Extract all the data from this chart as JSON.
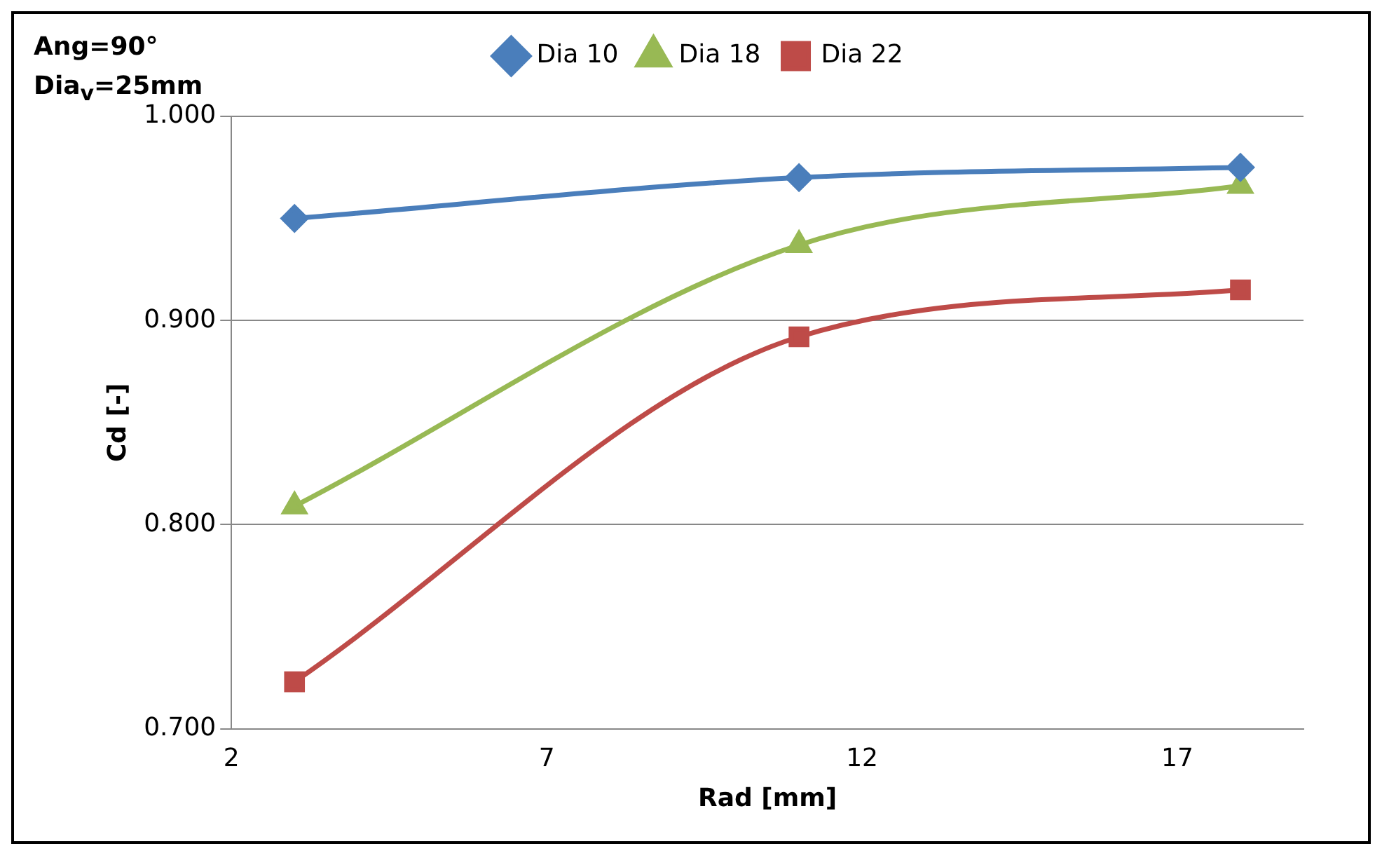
{
  "chart_data": {
    "type": "line",
    "title": "Ang=90°",
    "subtitle": "Dia$_{v}$=25mm",
    "xlabel": "Rad [mm]",
    "ylabel": "Cd [-]",
    "x": [
      3,
      11,
      18
    ],
    "series": [
      {
        "name": "Dia 10",
        "color": "#4a7ebb",
        "marker": "diamond",
        "values": [
          0.95,
          0.97,
          0.975
        ]
      },
      {
        "name": "Dia 18",
        "color": "#98b954",
        "marker": "triangle",
        "values": [
          0.809,
          0.937,
          0.966
        ]
      },
      {
        "name": "Dia 22",
        "color": "#be4b48",
        "marker": "square",
        "values": [
          0.723,
          0.892,
          0.915
        ]
      }
    ],
    "xlim": [
      2,
      19
    ],
    "xticks": [
      2,
      7,
      12,
      17
    ],
    "ylim": [
      0.7,
      1.0
    ],
    "yticks": [
      {
        "value": 0.7,
        "label": "0.700"
      },
      {
        "value": 0.8,
        "label": "0.800"
      },
      {
        "value": 0.9,
        "label": "0.900"
      },
      {
        "value": 1.0,
        "label": "1.000"
      }
    ],
    "grid": "y",
    "legend": "top",
    "line_style": "solid"
  }
}
